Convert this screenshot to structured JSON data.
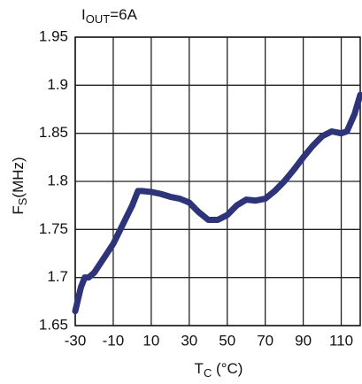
{
  "chart_data": {
    "type": "line",
    "title": {
      "text": "I",
      "subscript": "OUT",
      "suffix": "=6A"
    },
    "y_label": {
      "text": "F",
      "subscript": "S",
      "suffix": "(MHz)"
    },
    "x_label": {
      "text": "T",
      "subscript": "C",
      "suffix": " (°C)"
    },
    "x": [
      -30,
      -27,
      -25,
      -23,
      -20,
      -15,
      -10,
      -5,
      0,
      3,
      5,
      10,
      15,
      20,
      25,
      30,
      35,
      40,
      45,
      50,
      55,
      60,
      65,
      70,
      75,
      80,
      85,
      90,
      95,
      100,
      105,
      110,
      113,
      117,
      120
    ],
    "series": [
      {
        "color": "#2e3479",
        "values": [
          1.665,
          1.69,
          1.7,
          1.7,
          1.705,
          1.72,
          1.735,
          1.755,
          1.775,
          1.79,
          1.79,
          1.789,
          1.787,
          1.784,
          1.782,
          1.778,
          1.768,
          1.76,
          1.76,
          1.765,
          1.775,
          1.781,
          1.78,
          1.782,
          1.79,
          1.8,
          1.812,
          1.825,
          1.837,
          1.847,
          1.852,
          1.85,
          1.852,
          1.87,
          1.89
        ]
      }
    ],
    "xlim": [
      -30,
      120
    ],
    "xticks": [
      -30,
      -10,
      10,
      30,
      50,
      70,
      90,
      110
    ],
    "ylim": [
      1.65,
      1.95
    ],
    "yticks": [
      1.65,
      1.7,
      1.75,
      1.8,
      1.85,
      1.9,
      1.95
    ],
    "grid": true
  }
}
